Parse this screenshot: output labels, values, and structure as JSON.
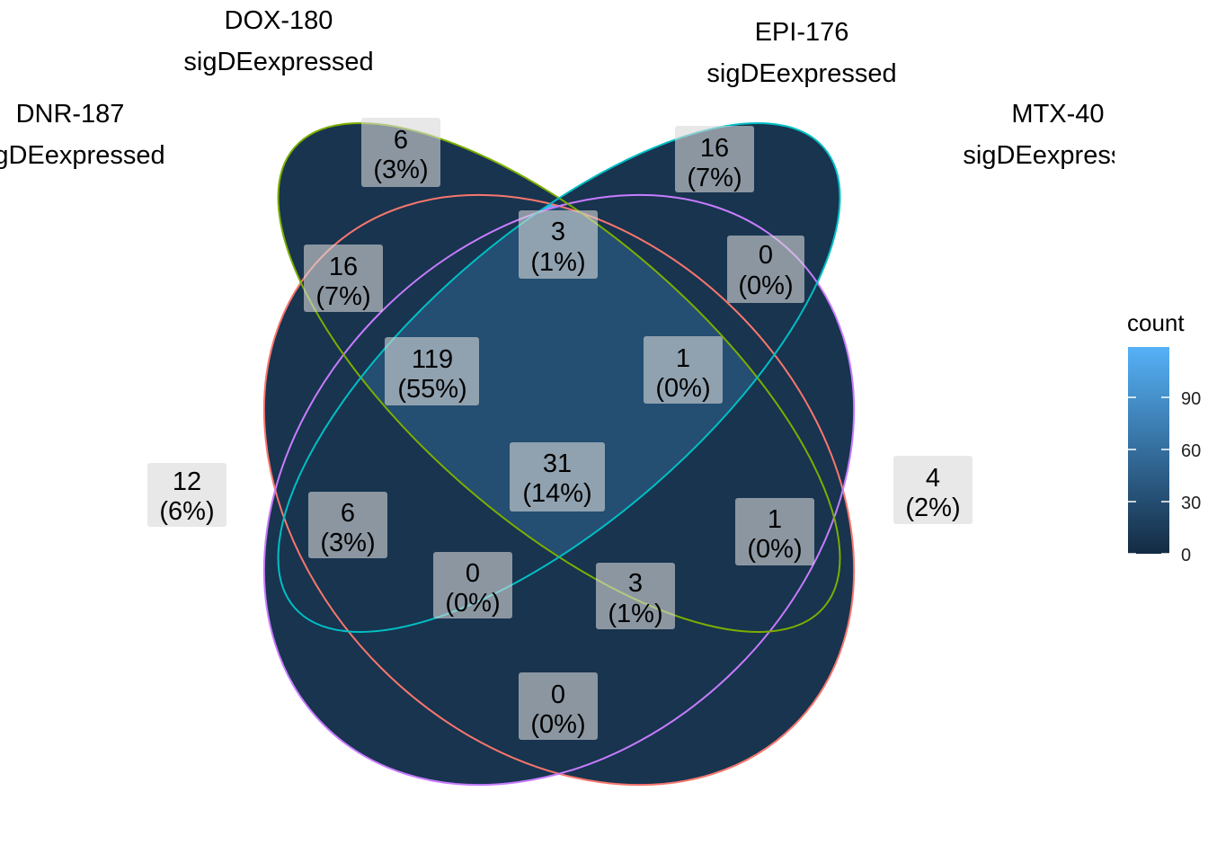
{
  "sets": [
    {
      "name": "DNR-187",
      "subtitle": "sigDEexpressed",
      "color": "#F8766D"
    },
    {
      "name": "DOX-180",
      "subtitle": "sigDEexpressed",
      "color": "#7CAE00"
    },
    {
      "name": "EPI-176",
      "subtitle": "sigDEexpressed",
      "color": "#00BFC4"
    },
    {
      "name": "MTX-40",
      "subtitle": "sigDEexpressed",
      "color": "#C77CFF"
    }
  ],
  "regions": [
    {
      "sets": [
        "DNR-187"
      ],
      "count": "12",
      "percent": "(6%)"
    },
    {
      "sets": [
        "DOX-180"
      ],
      "count": "6",
      "percent": "(3%)"
    },
    {
      "sets": [
        "EPI-176"
      ],
      "count": "16",
      "percent": "(7%)"
    },
    {
      "sets": [
        "MTX-40"
      ],
      "count": "4",
      "percent": "(2%)"
    },
    {
      "sets": [
        "DNR-187",
        "DOX-180"
      ],
      "count": "16",
      "percent": "(7%)"
    },
    {
      "sets": [
        "DOX-180",
        "EPI-176"
      ],
      "count": "3",
      "percent": "(1%)"
    },
    {
      "sets": [
        "EPI-176",
        "MTX-40"
      ],
      "count": "0",
      "percent": "(0%)"
    },
    {
      "sets": [
        "DNR-187",
        "DOX-180",
        "EPI-176"
      ],
      "count": "119",
      "percent": "(55%)"
    },
    {
      "sets": [
        "DOX-180",
        "EPI-176",
        "MTX-40"
      ],
      "count": "1",
      "percent": "(0%)"
    },
    {
      "sets": [
        "DNR-187",
        "EPI-176"
      ],
      "count": "6",
      "percent": "(3%)"
    },
    {
      "sets": [
        "DNR-187",
        "DOX-180",
        "EPI-176",
        "MTX-40"
      ],
      "count": "31",
      "percent": "(14%)"
    },
    {
      "sets": [
        "DOX-180",
        "MTX-40"
      ],
      "count": "1",
      "percent": "(0%)"
    },
    {
      "sets": [
        "DNR-187",
        "EPI-176",
        "MTX-40"
      ],
      "count": "0",
      "percent": "(0%)"
    },
    {
      "sets": [
        "DNR-187",
        "DOX-180",
        "MTX-40"
      ],
      "count": "3",
      "percent": "(1%)"
    },
    {
      "sets": [
        "DNR-187",
        "MTX-40"
      ],
      "count": "0",
      "percent": "(0%)"
    }
  ],
  "legend": {
    "title": "count",
    "ticks": [
      "0",
      "30",
      "60",
      "90"
    ],
    "low_color": "#132B43",
    "high_color": "#56B1F7",
    "max": 119
  }
}
